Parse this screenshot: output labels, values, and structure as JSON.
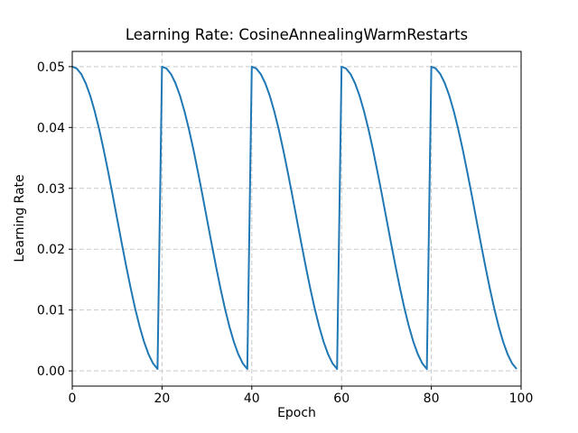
{
  "figure": {
    "background": "#ffffff"
  },
  "chart_data": {
    "type": "line",
    "title": "Learning Rate: CosineAnnealingWarmRestarts",
    "xlabel": "Epoch",
    "ylabel": "Learning Rate",
    "xlim": [
      0,
      100
    ],
    "ylim": [
      -0.0025,
      0.0525
    ],
    "xticks": [
      0,
      20,
      40,
      60,
      80,
      100
    ],
    "xtick_labels": [
      "0",
      "20",
      "40",
      "60",
      "80",
      "100"
    ],
    "yticks": [
      0.0,
      0.01,
      0.02,
      0.03,
      0.04,
      0.05
    ],
    "ytick_labels": [
      "0.00",
      "0.01",
      "0.02",
      "0.03",
      "0.04",
      "0.05"
    ],
    "grid": true,
    "grid_style": "dashed",
    "grid_color": "#c9c9c9",
    "spine_color": "#000000",
    "text_color": "#000000",
    "legend": null,
    "series": [
      {
        "name": "learning_rate",
        "color": "#1f77b4",
        "line_width": 2,
        "x": [
          0,
          1,
          2,
          3,
          4,
          5,
          6,
          7,
          8,
          9,
          10,
          11,
          12,
          13,
          14,
          15,
          16,
          17,
          18,
          19,
          20,
          21,
          22,
          23,
          24,
          25,
          26,
          27,
          28,
          29,
          30,
          31,
          32,
          33,
          34,
          35,
          36,
          37,
          38,
          39,
          40,
          41,
          42,
          43,
          44,
          45,
          46,
          47,
          48,
          49,
          50,
          51,
          52,
          53,
          54,
          55,
          56,
          57,
          58,
          59,
          60,
          61,
          62,
          63,
          64,
          65,
          66,
          67,
          68,
          69,
          70,
          71,
          72,
          73,
          74,
          75,
          76,
          77,
          78,
          79,
          80,
          81,
          82,
          83,
          84,
          85,
          86,
          87,
          88,
          89,
          90,
          91,
          92,
          93,
          94,
          95,
          96,
          97,
          98,
          99
        ],
        "y": [
          0.05,
          0.049692,
          0.048776,
          0.047275,
          0.045225,
          0.042678,
          0.039695,
          0.03635,
          0.032725,
          0.028911,
          0.025,
          0.021089,
          0.017275,
          0.01365,
          0.010305,
          0.007322,
          0.004775,
          0.002725,
          0.001224,
          0.000308,
          0.05,
          0.049692,
          0.048776,
          0.047275,
          0.045225,
          0.042678,
          0.039695,
          0.03635,
          0.032725,
          0.028911,
          0.025,
          0.021089,
          0.017275,
          0.01365,
          0.010305,
          0.007322,
          0.004775,
          0.002725,
          0.001224,
          0.000308,
          0.05,
          0.049692,
          0.048776,
          0.047275,
          0.045225,
          0.042678,
          0.039695,
          0.03635,
          0.032725,
          0.028911,
          0.025,
          0.021089,
          0.017275,
          0.01365,
          0.010305,
          0.007322,
          0.004775,
          0.002725,
          0.001224,
          0.000308,
          0.05,
          0.049692,
          0.048776,
          0.047275,
          0.045225,
          0.042678,
          0.039695,
          0.03635,
          0.032725,
          0.028911,
          0.025,
          0.021089,
          0.017275,
          0.01365,
          0.010305,
          0.007322,
          0.004775,
          0.002725,
          0.001224,
          0.000308,
          0.05,
          0.049692,
          0.048776,
          0.047275,
          0.045225,
          0.042678,
          0.039695,
          0.03635,
          0.032725,
          0.028911,
          0.025,
          0.021089,
          0.017275,
          0.01365,
          0.010305,
          0.007322,
          0.004775,
          0.002725,
          0.001224,
          0.000308
        ]
      }
    ]
  }
}
